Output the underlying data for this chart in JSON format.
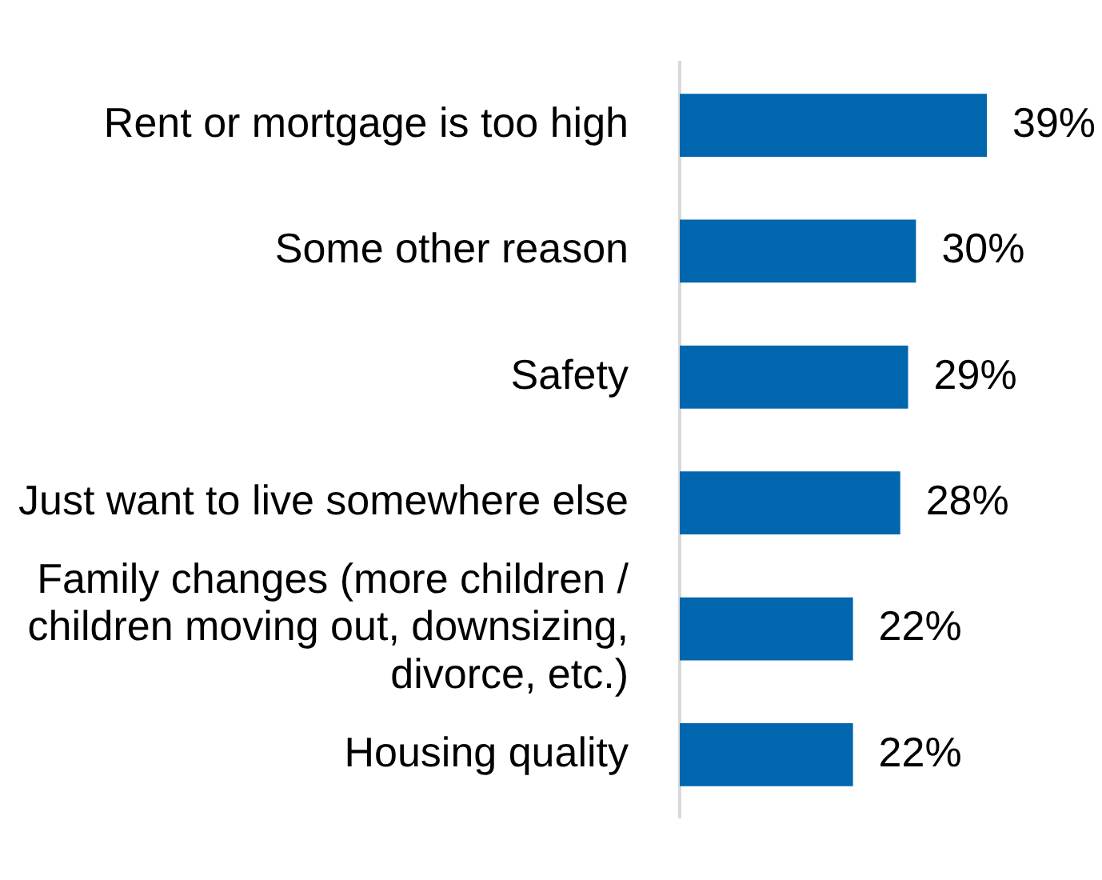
{
  "chart_data": {
    "type": "bar",
    "orientation": "horizontal",
    "categories": [
      "Rent or mortgage is too high",
      "Some other reason",
      "Safety",
      "Just want to live somewhere else",
      "Family changes (more children / children moving out, downsizing, divorce, etc.)",
      "Housing quality"
    ],
    "values": [
      39,
      30,
      29,
      28,
      22,
      22
    ],
    "color": "#0066ad",
    "value_labels": [
      "39%",
      "30%",
      "29%",
      "28%",
      "22%",
      "22%"
    ],
    "legend": false
  }
}
